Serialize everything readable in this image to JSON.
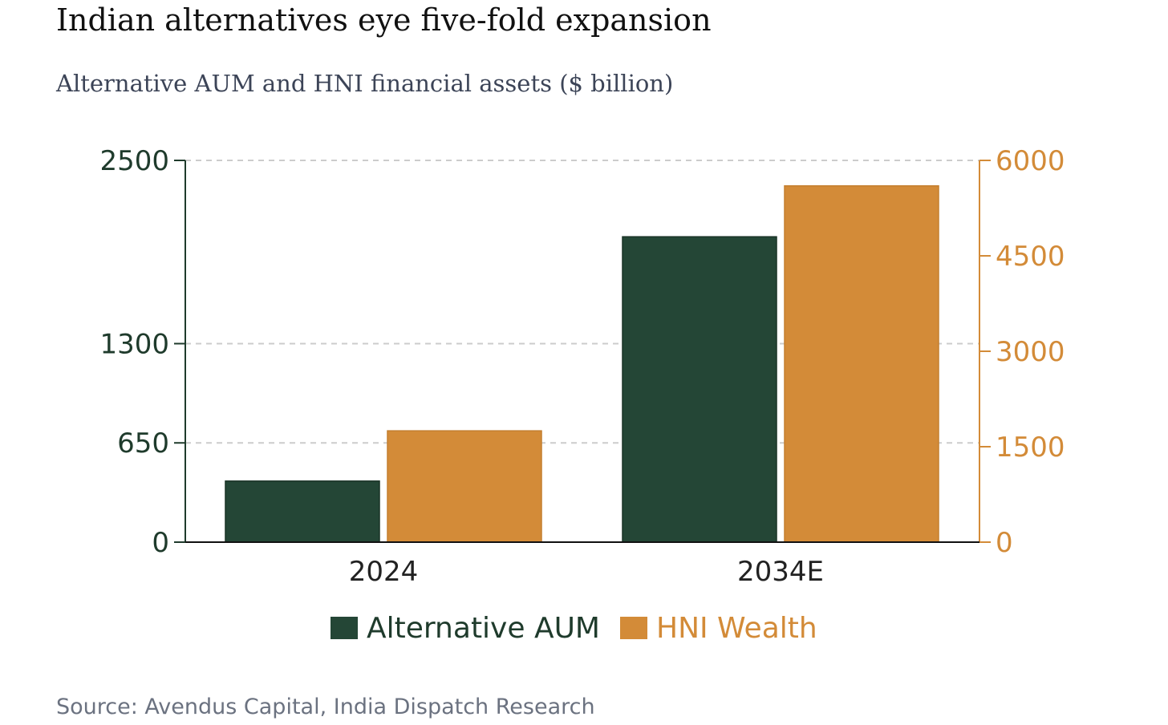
{
  "title": "Indian alternatives eye five-fold expansion",
  "subtitle": "Alternative AUM and HNI financial assets ($ billion)",
  "source": "Source: Avendus Capital, India Dispatch Research",
  "colors": {
    "alt": "#244636",
    "hni": "#d38b38",
    "grid": "#cccccc",
    "axis": "#1f3b2c"
  },
  "chart_data": {
    "type": "bar",
    "categories": [
      "2024",
      "2034E"
    ],
    "series": [
      {
        "name": "Alternative AUM",
        "axis": "left",
        "values": [
          400,
          2000
        ]
      },
      {
        "name": "HNI Wealth",
        "axis": "right",
        "values": [
          1750,
          5600
        ]
      }
    ],
    "y_left": {
      "ylim": [
        0,
        2500
      ],
      "ticks": [
        0,
        650,
        1300,
        2500
      ]
    },
    "y_right": {
      "ylim": [
        0,
        6000
      ],
      "ticks": [
        0,
        1500,
        3000,
        4500,
        6000
      ]
    },
    "grid": true,
    "legend": "bottom"
  }
}
